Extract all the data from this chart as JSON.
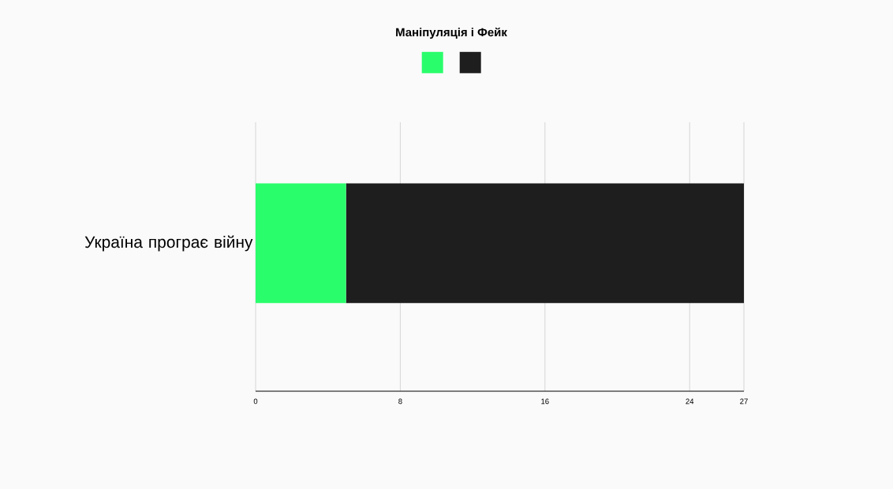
{
  "chart_data": {
    "type": "bar",
    "orientation": "horizontal",
    "stacked": true,
    "legend_title": "Маніпуляція і Фейк",
    "grid": "x",
    "categories": [
      "Україна програє війну"
    ],
    "series": [
      {
        "color": "#2afd6c",
        "values": [
          5
        ]
      },
      {
        "color": "#1e1e1e",
        "values": [
          22
        ]
      }
    ],
    "xlim": [
      0,
      27
    ],
    "xticks": [
      0,
      8,
      16,
      24,
      27
    ]
  }
}
